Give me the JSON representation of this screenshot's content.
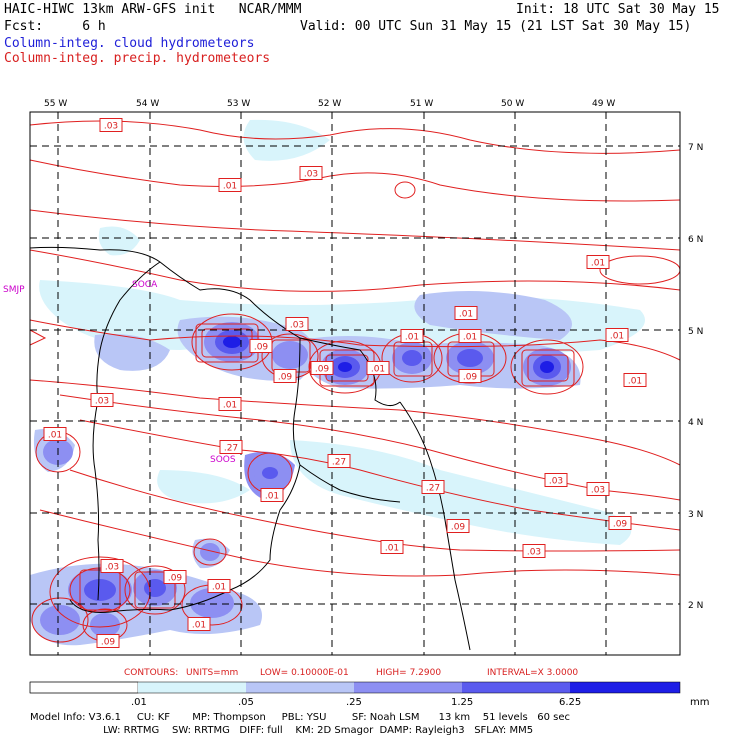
{
  "header": {
    "line1_left": "HAIC-HIWC 13km ARW-GFS init   NCAR/MMM",
    "line1_right": "Init: 18 UTC Sat 30 May 15",
    "line2_left": "Fcst:     6 h",
    "line2_right": "Valid: 00 UTC Sun 31 May 15 (21 LST Sat 30 May 15)",
    "legend_cloud": "Column-integ. cloud hydrometeors",
    "legend_precip": "Column-integ. precip. hydrometeors"
  },
  "colors": {
    "cloud_levels": [
      "#d8f4fb",
      "#b9c6f6",
      "#8d8ff2",
      "#5a5aee",
      "#1e1ee6"
    ],
    "precip_contour": "#e02020",
    "boundary": "#000000",
    "station": "#cc00cc"
  },
  "map": {
    "lon_labels": [
      "55 W",
      "54 W",
      "53 W",
      "52 W",
      "51 W",
      "50 W",
      "49 W"
    ],
    "lat_labels": [
      "7 N",
      "6 N",
      "5 N",
      "4 N",
      "3 N",
      "2 N"
    ],
    "stations": [
      "SMJP",
      "SOCA",
      "SOOS"
    ],
    "contour_labels": [
      ".03",
      ".03",
      ".01",
      ".01",
      ".01",
      ".03",
      ".01",
      ".01",
      ".09",
      ".09",
      ".09",
      ".01",
      ".01",
      ".03",
      ".09",
      ".01",
      ".01",
      ".27",
      ".27",
      ".01",
      ".27",
      ".01",
      ".03",
      ".09",
      ".09",
      ".01",
      ".03",
      ".03",
      ".09",
      ".01",
      ".03",
      ".09",
      ".01"
    ]
  },
  "contour_info": {
    "title": "CONTOURS:",
    "units": "UNITS=mm",
    "low": "LOW= 0.10000E-01",
    "high": "HIGH=   7.2900",
    "interval": "INTERVAL=X  3.0000"
  },
  "colorbar": {
    "labels": [
      ".01",
      ".05",
      ".25",
      "1.25",
      "6.25"
    ],
    "unit": "mm"
  },
  "model_info": {
    "line1": "Model Info: V3.6.1     CU: KF       MP: Thompson     PBL: YSU        SF: Noah LSM      13 km    51 levels   60 sec",
    "line2": "                       LW: RRTMG    SW: RRTMG   DIFF: full    KM: 2D Smagor  DAMP: Rayleigh3   SFLAY: MM5"
  }
}
